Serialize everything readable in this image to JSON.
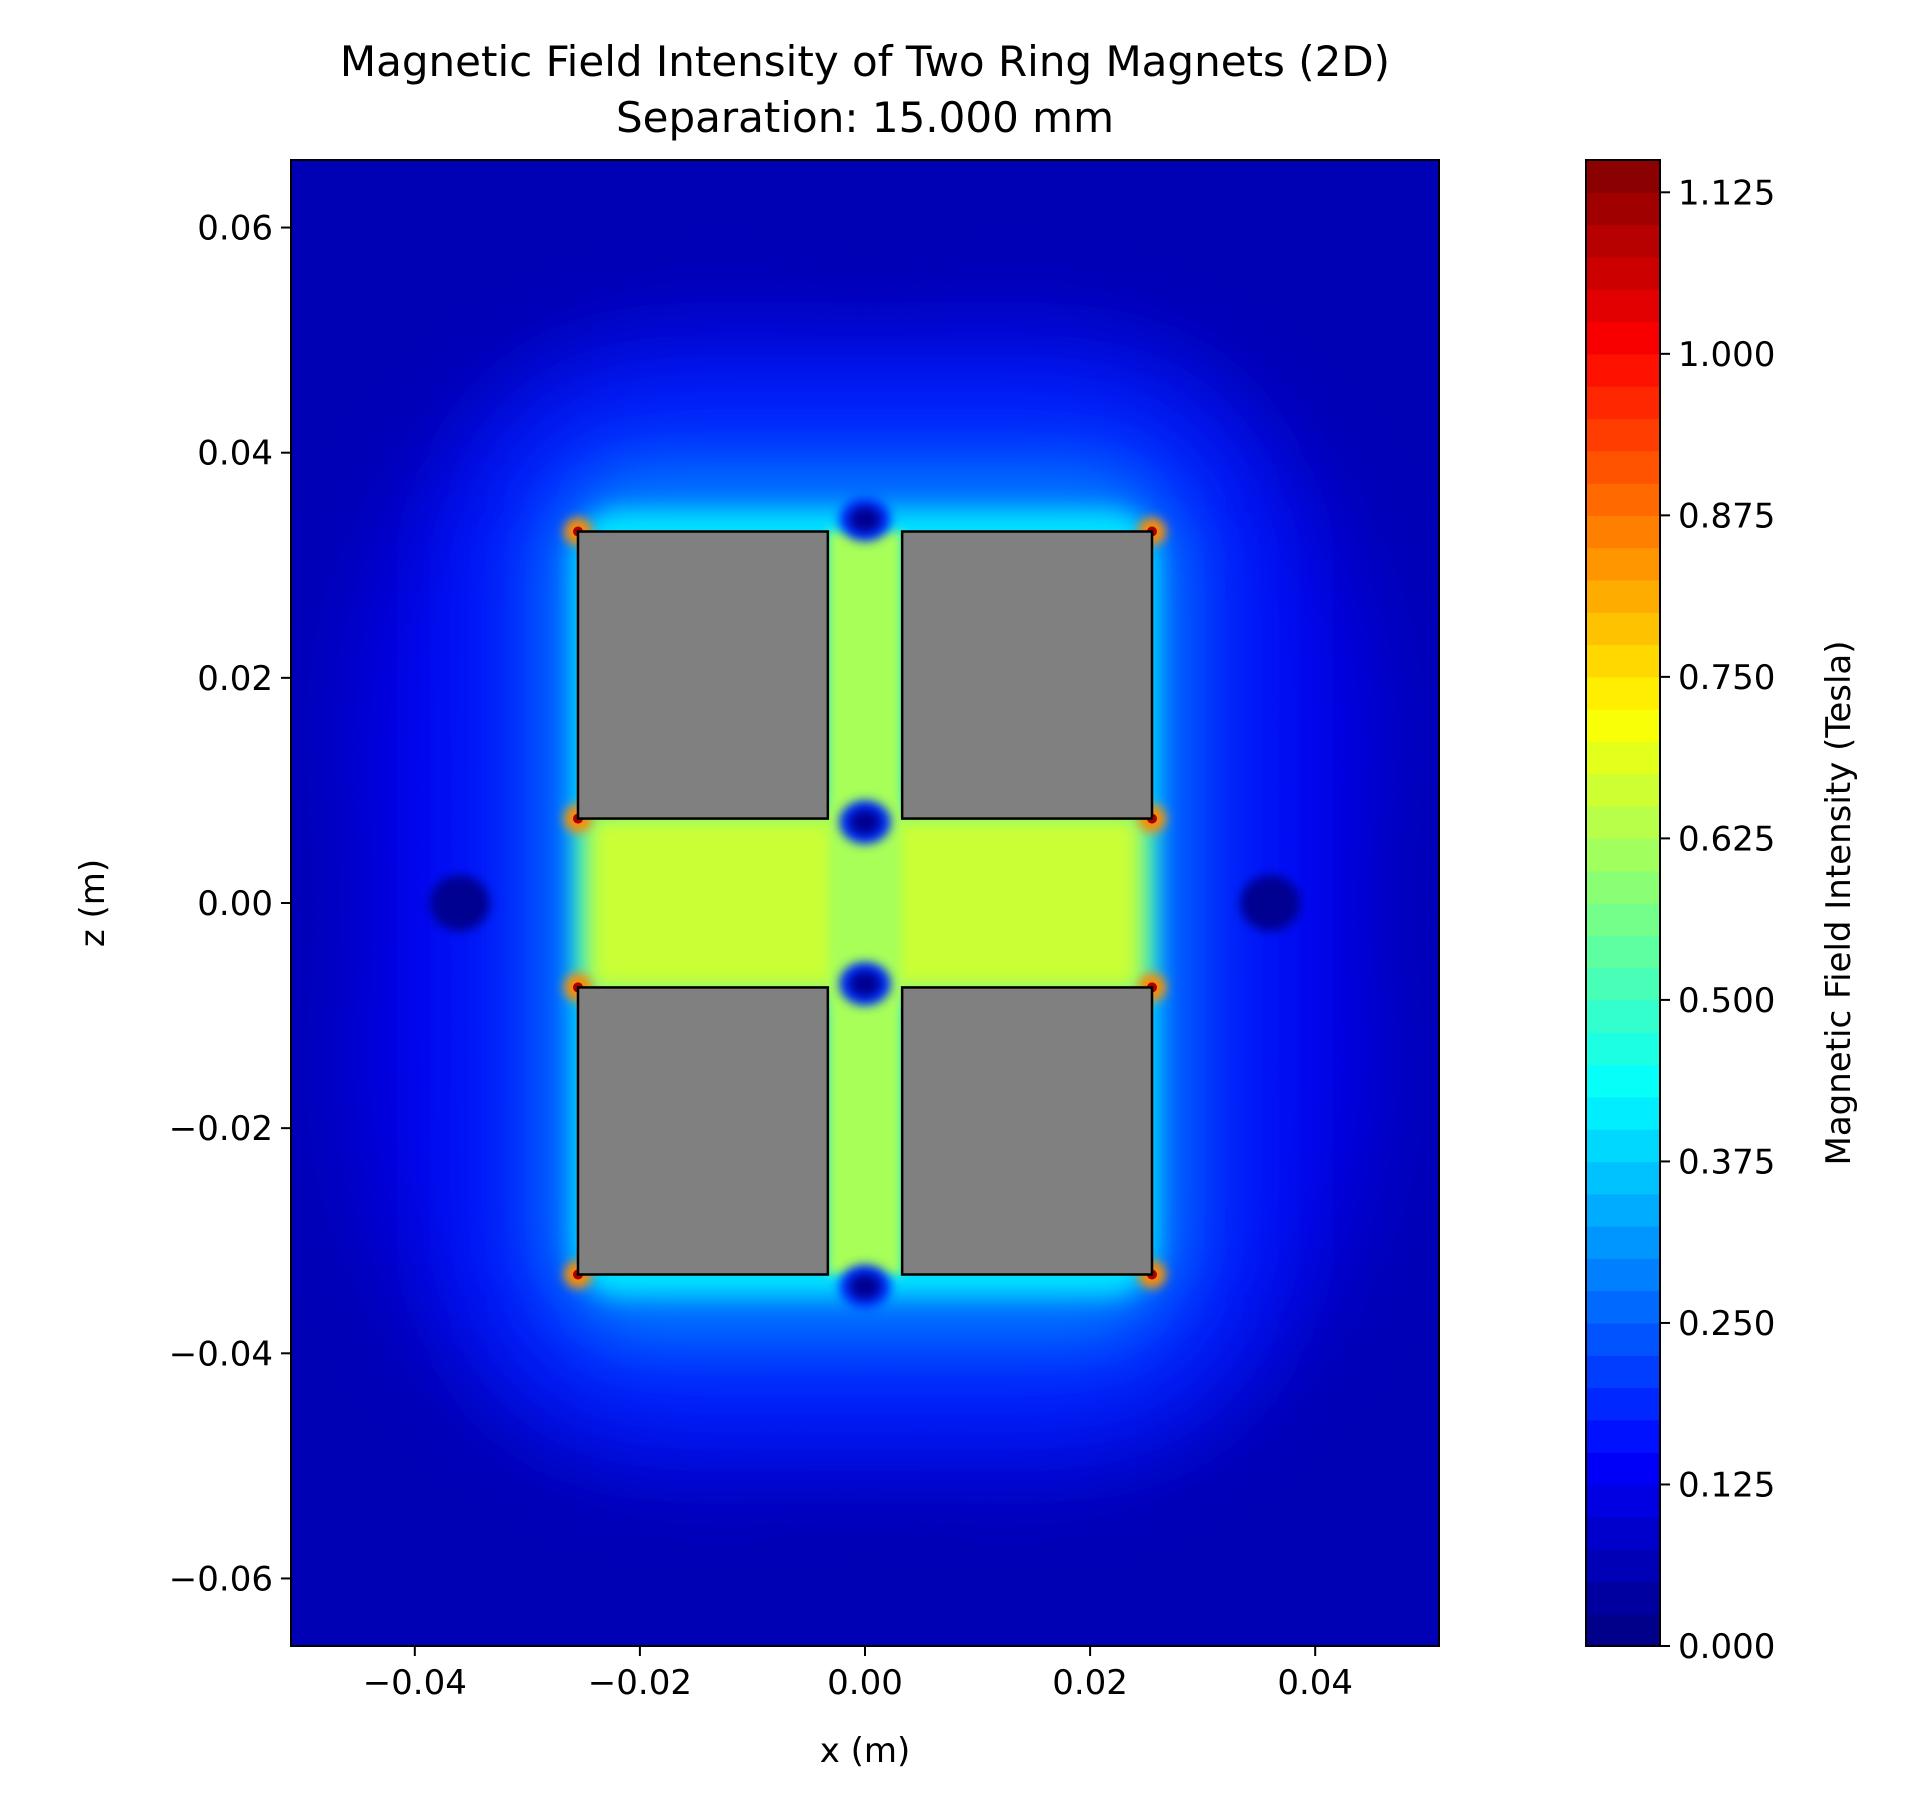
{
  "chart_data": {
    "type": "heatmap",
    "title": "Magnetic Field Intensity of Two Ring Magnets (2D)",
    "subtitle": "Separation: 15.000 mm",
    "xlabel": "x (m)",
    "ylabel": "z (m)",
    "xlim": [
      -0.051,
      0.051
    ],
    "ylim": [
      -0.066,
      0.066
    ],
    "x_ticks": [
      -0.04,
      -0.02,
      0.0,
      0.02,
      0.04
    ],
    "x_tick_labels": [
      "−0.04",
      "−0.02",
      "0.00",
      "0.02",
      "0.04"
    ],
    "y_ticks": [
      0.06,
      0.04,
      0.02,
      0.0,
      -0.02,
      -0.04,
      -0.06
    ],
    "y_tick_labels": [
      "0.06",
      "0.04",
      "0.02",
      "0.00",
      "−0.02",
      "−0.04",
      "−0.06"
    ],
    "colorbar": {
      "label": "Magnetic Field Intensity (Tesla)",
      "colormap": "jet",
      "range": [
        0,
        1.15
      ],
      "ticks": [
        0.0,
        0.125,
        0.25,
        0.375,
        0.5,
        0.625,
        0.75,
        0.875,
        1.0,
        1.125
      ],
      "tick_labels": [
        "0.000",
        "0.125",
        "0.250",
        "0.375",
        "0.500",
        "0.625",
        "0.750",
        "0.875",
        "1.000",
        "1.125"
      ]
    },
    "magnets": [
      {
        "name": "top-left",
        "x": [
          -0.0255,
          -0.0033
        ],
        "z": [
          0.0075,
          0.033
        ]
      },
      {
        "name": "top-right",
        "x": [
          0.0033,
          0.0255
        ],
        "z": [
          0.0075,
          0.033
        ]
      },
      {
        "name": "bottom-left",
        "x": [
          -0.0255,
          -0.0033
        ],
        "z": [
          -0.033,
          -0.0075
        ]
      },
      {
        "name": "bottom-right",
        "x": [
          0.0033,
          0.0255
        ],
        "z": [
          -0.033,
          -0.0075
        ]
      }
    ],
    "magnet_color": "#808080",
    "field_levels": {
      "background": 0.06,
      "near_field": 0.4,
      "inner_gap": 0.66,
      "corner_peak": 1.1,
      "axis_minimum": 0.02
    }
  }
}
